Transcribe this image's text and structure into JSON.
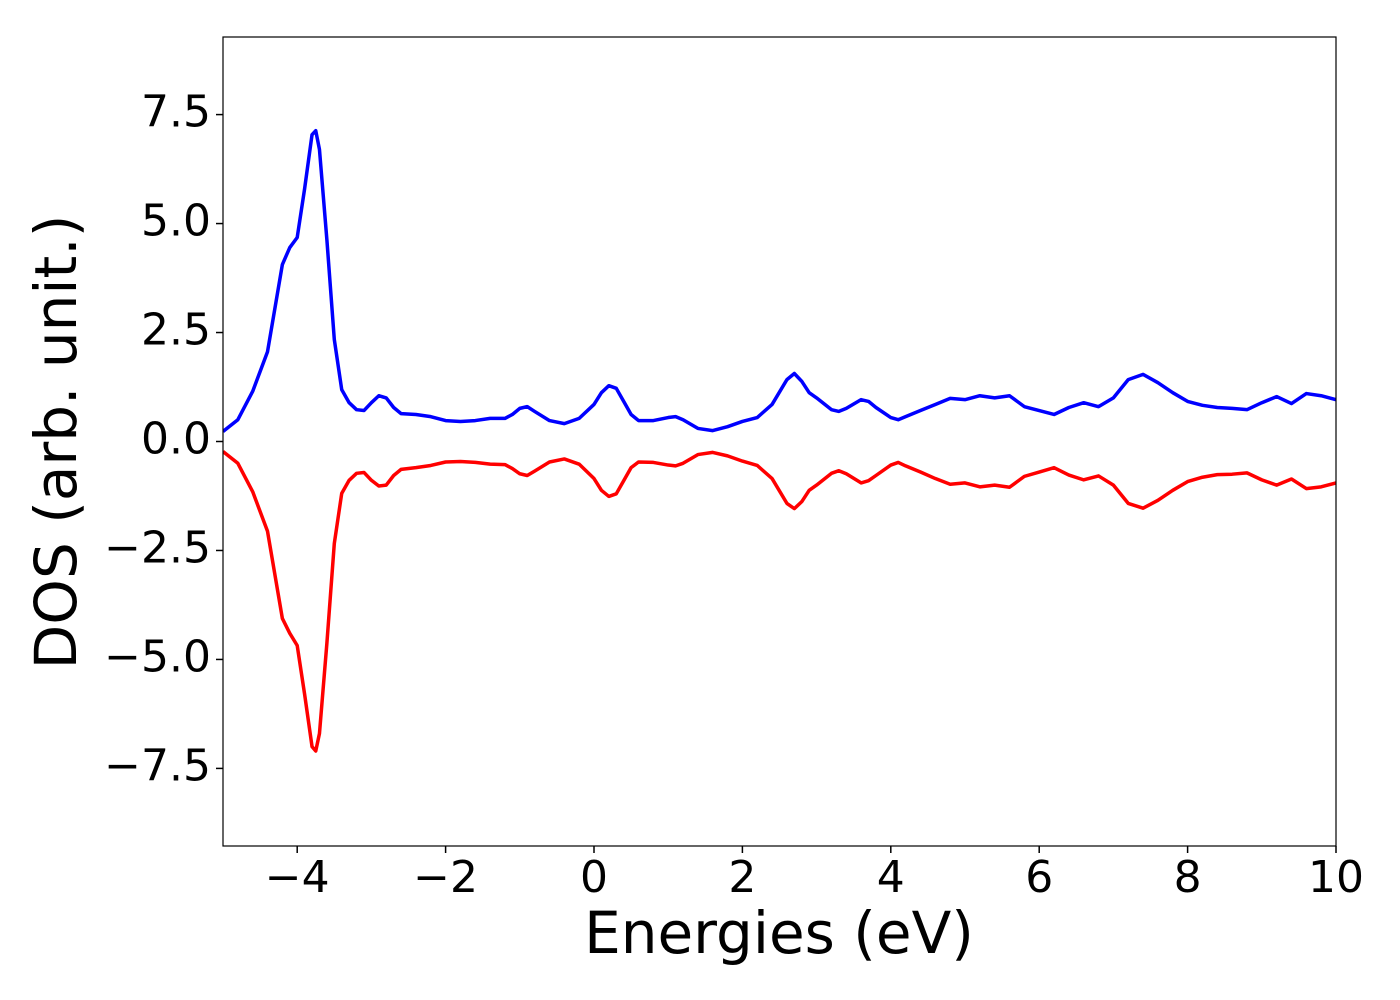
{
  "chart_data": {
    "type": "line",
    "xlabel": "Energies (eV)",
    "ylabel": "DOS (arb. unit.)",
    "x": [
      -5,
      -4.8,
      -4.6,
      -4.4,
      -4.2,
      -4.1,
      -4.0,
      -3.9,
      -3.8,
      -3.75,
      -3.7,
      -3.6,
      -3.5,
      -3.4,
      -3.3,
      -3.2,
      -3.1,
      -3.0,
      -2.9,
      -2.8,
      -2.7,
      -2.6,
      -2.4,
      -2.2,
      -2.0,
      -1.8,
      -1.6,
      -1.4,
      -1.2,
      -1.1,
      -1.0,
      -0.9,
      -0.8,
      -0.6,
      -0.4,
      -0.2,
      0.0,
      0.1,
      0.2,
      0.3,
      0.4,
      0.5,
      0.6,
      0.8,
      1.0,
      1.1,
      1.2,
      1.4,
      1.6,
      1.8,
      2.0,
      2.2,
      2.4,
      2.6,
      2.7,
      2.8,
      2.9,
      3.0,
      3.2,
      3.3,
      3.4,
      3.6,
      3.7,
      3.8,
      4.0,
      4.1,
      4.2,
      4.4,
      4.6,
      4.8,
      5.0,
      5.2,
      5.4,
      5.6,
      5.8,
      6.0,
      6.2,
      6.4,
      6.6,
      6.8,
      7.0,
      7.2,
      7.4,
      7.6,
      7.8,
      8.0,
      8.2,
      8.4,
      8.6,
      8.8,
      9.0,
      9.2,
      9.4,
      9.6,
      9.8,
      10.0
    ],
    "series": [
      {
        "color": "#0000ff",
        "values": [
          0.23,
          0.5,
          1.15,
          2.06,
          4.06,
          4.45,
          4.68,
          5.8,
          7.04,
          7.13,
          6.7,
          4.63,
          2.34,
          1.19,
          0.89,
          0.73,
          0.71,
          0.89,
          1.05,
          1.0,
          0.78,
          0.64,
          0.62,
          0.57,
          0.48,
          0.46,
          0.48,
          0.53,
          0.53,
          0.62,
          0.76,
          0.8,
          0.69,
          0.48,
          0.41,
          0.53,
          0.85,
          1.12,
          1.28,
          1.22,
          0.92,
          0.62,
          0.48,
          0.48,
          0.55,
          0.57,
          0.5,
          0.3,
          0.25,
          0.34,
          0.46,
          0.55,
          0.85,
          1.42,
          1.56,
          1.38,
          1.12,
          1.0,
          0.73,
          0.69,
          0.76,
          0.96,
          0.92,
          0.78,
          0.55,
          0.5,
          0.57,
          0.71,
          0.85,
          0.99,
          0.96,
          1.05,
          1.0,
          1.05,
          0.8,
          0.71,
          0.62,
          0.78,
          0.89,
          0.8,
          1.0,
          1.42,
          1.54,
          1.35,
          1.12,
          0.92,
          0.83,
          0.78,
          0.76,
          0.73,
          0.89,
          1.03,
          0.87,
          1.1,
          1.05,
          0.96
        ]
      },
      {
        "color": "#ff0000",
        "values": [
          -0.23,
          -0.5,
          -1.15,
          -2.06,
          -4.06,
          -4.4,
          -4.68,
          -5.8,
          -7.0,
          -7.1,
          -6.7,
          -4.63,
          -2.34,
          -1.19,
          -0.89,
          -0.73,
          -0.71,
          -0.89,
          -1.02,
          -1.0,
          -0.78,
          -0.64,
          -0.6,
          -0.55,
          -0.47,
          -0.46,
          -0.48,
          -0.52,
          -0.53,
          -0.62,
          -0.74,
          -0.78,
          -0.68,
          -0.47,
          -0.4,
          -0.52,
          -0.85,
          -1.12,
          -1.26,
          -1.2,
          -0.9,
          -0.6,
          -0.47,
          -0.48,
          -0.54,
          -0.56,
          -0.5,
          -0.3,
          -0.25,
          -0.33,
          -0.45,
          -0.55,
          -0.85,
          -1.42,
          -1.54,
          -1.38,
          -1.12,
          -1.0,
          -0.73,
          -0.67,
          -0.74,
          -0.95,
          -0.9,
          -0.78,
          -0.54,
          -0.48,
          -0.56,
          -0.7,
          -0.85,
          -0.98,
          -0.95,
          -1.04,
          -1.0,
          -1.05,
          -0.8,
          -0.7,
          -0.6,
          -0.77,
          -0.88,
          -0.79,
          -1.0,
          -1.42,
          -1.53,
          -1.35,
          -1.12,
          -0.92,
          -0.82,
          -0.76,
          -0.75,
          -0.72,
          -0.88,
          -1.0,
          -0.86,
          -1.08,
          -1.04,
          -0.95
        ]
      }
    ],
    "xlim": [
      -5,
      10
    ],
    "xticks": [
      {
        "value": -4,
        "label": "−4"
      },
      {
        "value": -2,
        "label": "−2"
      },
      0,
      2,
      4,
      6,
      8,
      10
    ],
    "ylim": [
      -9.28,
      9.28
    ],
    "yticks": [
      {
        "value": -7.5,
        "label": "−7.5"
      },
      {
        "value": -5,
        "label": "−5.0"
      },
      {
        "value": -2.5,
        "label": "−2.5"
      },
      {
        "value": 0,
        "label": "0.0"
      },
      2.5,
      {
        "value": 5,
        "label": "5.0"
      },
      7.5
    ],
    "grid": false
  }
}
